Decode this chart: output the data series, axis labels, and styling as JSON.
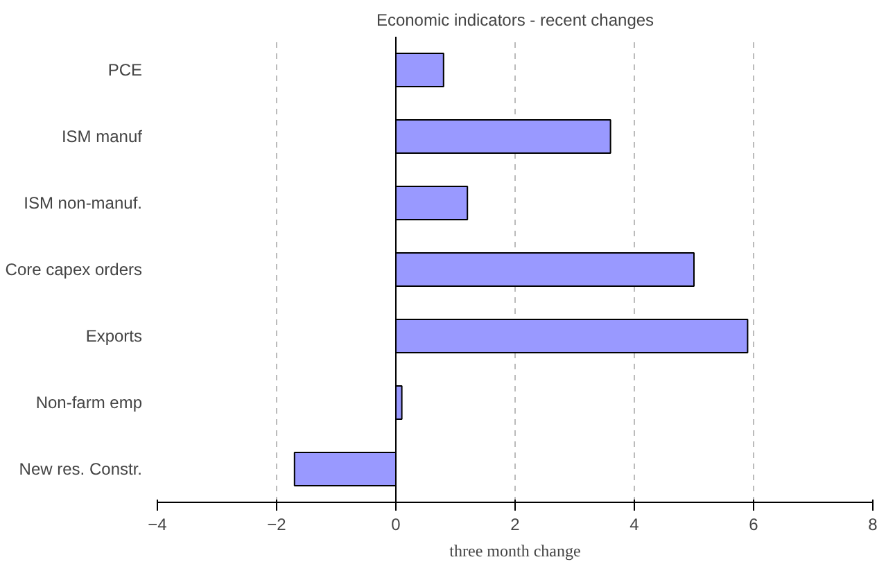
{
  "chart_data": {
    "type": "bar",
    "orientation": "horizontal",
    "title": "Economic indicators - recent changes",
    "xlabel": "three month change",
    "categories": [
      "PCE",
      "ISM manuf",
      "ISM non-manuf.",
      "Core capex orders",
      "Exports",
      "Non-farm emp",
      "New res. Constr."
    ],
    "values": [
      0.8,
      3.6,
      1.2,
      5.0,
      5.9,
      0.1,
      -1.7
    ],
    "color": "#9999ff",
    "xlim": [
      -4,
      8
    ],
    "xticks": [
      -4,
      -2,
      0,
      2,
      4,
      6,
      8
    ],
    "grid": "x"
  }
}
